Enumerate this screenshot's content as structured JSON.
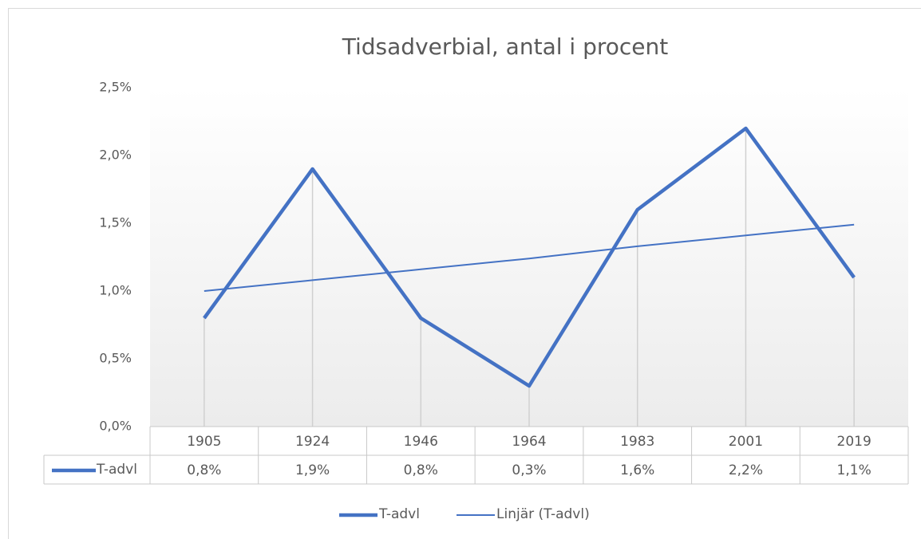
{
  "chart_data": {
    "type": "line",
    "title": "Tidsadverbial,  antal i procent",
    "categories": [
      "1905",
      "1924",
      "1946",
      "1964",
      "1983",
      "2001",
      "2019"
    ],
    "series": [
      {
        "name": "T-advl",
        "color": "#4472c4",
        "values": [
          0.8,
          1.9,
          0.8,
          0.3,
          1.6,
          2.2,
          1.1
        ],
        "value_labels": [
          "0,8%",
          "1,9%",
          "0,8%",
          "0,3%",
          "1,6%",
          "2,2%",
          "1,1%"
        ]
      },
      {
        "name": "Linjär (T-advl)",
        "color": "#4472c4",
        "trendline": true,
        "values": [
          1.0,
          1.08,
          1.16,
          1.24,
          1.33,
          1.41,
          1.49
        ]
      }
    ],
    "ylim": [
      0,
      2.5
    ],
    "yticks": [
      {
        "value": 0,
        "label": "0,0%"
      },
      {
        "value": 0.5,
        "label": "0,5%"
      },
      {
        "value": 1,
        "label": "1,0%"
      },
      {
        "value": 1.5,
        "label": "1,5%"
      },
      {
        "value": 2,
        "label": "2,0%"
      },
      {
        "value": 2.5,
        "label": "2,5%"
      }
    ],
    "drop_lines": true,
    "data_table": true,
    "legend": "bottom"
  }
}
